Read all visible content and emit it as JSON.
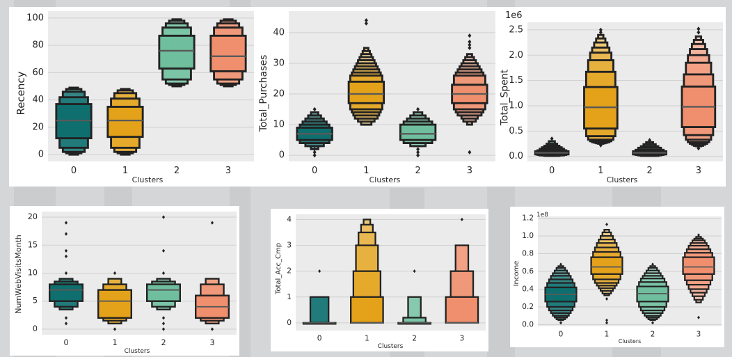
{
  "colors": {
    "cluster_palette": [
      "#0e6f6e",
      "#e3a21a",
      "#6fbf9e",
      "#ef8f6e"
    ],
    "plot_background": "#ebebeb",
    "grid": "#cfcfcf",
    "edge": "#222222"
  },
  "chart_data": [
    {
      "type": "boxen",
      "xlabel": "Clusters",
      "ylabel": "Recency",
      "offset_label": "",
      "categories": [
        "0",
        "1",
        "2",
        "3"
      ],
      "ylim": [
        -5,
        105
      ],
      "yticks": [
        0,
        20,
        40,
        60,
        80,
        100
      ],
      "ytick_labels": [
        "0",
        "20",
        "40",
        "60",
        "80",
        "100"
      ],
      "grid": true,
      "boxes": [
        {
          "levels": [
            [
              12,
              37
            ],
            [
              5,
              42
            ],
            [
              2,
              46
            ],
            [
              1,
              48
            ],
            [
              0,
              49
            ]
          ],
          "median": 25,
          "outliers": []
        },
        {
          "levels": [
            [
              13,
              35
            ],
            [
              5,
              41
            ],
            [
              2,
              45
            ],
            [
              1,
              47
            ],
            [
              0,
              48
            ]
          ],
          "median": 25,
          "outliers": []
        },
        {
          "levels": [
            [
              63,
              87
            ],
            [
              55,
              93
            ],
            [
              52,
              96
            ],
            [
              51,
              98
            ],
            [
              50,
              99
            ]
          ],
          "median": 76,
          "outliers": []
        },
        {
          "levels": [
            [
              61,
              87
            ],
            [
              55,
              93
            ],
            [
              52,
              96
            ],
            [
              51,
              98
            ],
            [
              50,
              99
            ]
          ],
          "median": 72,
          "outliers": []
        }
      ]
    },
    {
      "type": "boxen",
      "xlabel": "Clusters",
      "ylabel": "Total_Purchases",
      "offset_label": "",
      "categories": [
        "0",
        "1",
        "2",
        "3"
      ],
      "ylim": [
        -2,
        47
      ],
      "yticks": [
        0,
        10,
        20,
        30,
        40
      ],
      "ytick_labels": [
        "0",
        "10",
        "20",
        "30",
        "40"
      ],
      "grid": true,
      "boxes": [
        {
          "levels": [
            [
              5,
              9
            ],
            [
              4,
              10
            ],
            [
              4,
              11
            ],
            [
              3,
              12
            ],
            [
              3,
              13
            ],
            [
              2,
              14
            ]
          ],
          "median": 7,
          "outliers": [
            0,
            1,
            2,
            15
          ]
        },
        {
          "levels": [
            [
              17,
              24
            ],
            [
              15,
              26
            ],
            [
              14,
              27
            ],
            [
              13,
              28
            ],
            [
              12,
              29
            ],
            [
              12,
              30
            ],
            [
              11,
              31
            ],
            [
              11,
              32
            ],
            [
              10,
              33
            ],
            [
              10,
              34
            ],
            [
              10,
              35
            ]
          ],
          "median": 20,
          "outliers": [
            43,
            44
          ]
        },
        {
          "levels": [
            [
              5,
              10
            ],
            [
              4,
              11
            ],
            [
              4,
              12
            ],
            [
              3,
              13
            ],
            [
              3,
              14
            ]
          ],
          "median": 7,
          "outliers": [
            0,
            1,
            2,
            15
          ]
        },
        {
          "levels": [
            [
              17,
              23
            ],
            [
              15,
              26
            ],
            [
              14,
              27
            ],
            [
              13,
              28
            ],
            [
              13,
              29
            ],
            [
              12,
              30
            ],
            [
              11,
              31
            ],
            [
              11,
              32
            ],
            [
              10,
              33
            ]
          ],
          "median": 20,
          "outliers": [
            1,
            35,
            36,
            37,
            39
          ]
        }
      ]
    },
    {
      "type": "boxen",
      "xlabel": "Clusters",
      "ylabel": "Total_Spent",
      "offset_label": "1e6",
      "categories": [
        "0",
        "1",
        "2",
        "3"
      ],
      "ylim": [
        -0.1,
        2.65
      ],
      "yticks": [
        0,
        0.5,
        1,
        1.5,
        2,
        2.5
      ],
      "ytick_labels": [
        "0.0",
        "0.5",
        "1.0",
        "1.5",
        "2.0",
        "2.5"
      ],
      "grid": true,
      "boxes": [
        {
          "levels": [
            [
              0.04,
              0.1
            ],
            [
              0.03,
              0.12
            ],
            [
              0.02,
              0.15
            ],
            [
              0.02,
              0.18
            ],
            [
              0.01,
              0.21
            ],
            [
              0.01,
              0.25
            ],
            [
              0.01,
              0.3
            ]
          ],
          "median": 0.07,
          "outliers": [
            0.35
          ]
        },
        {
          "levels": [
            [
              0.55,
              1.37
            ],
            [
              0.4,
              1.67
            ],
            [
              0.33,
              1.9
            ],
            [
              0.3,
              2.05
            ],
            [
              0.28,
              2.15
            ],
            [
              0.27,
              2.25
            ],
            [
              0.26,
              2.33
            ],
            [
              0.25,
              2.4
            ]
          ],
          "median": 0.97,
          "outliers": [
            0.22,
            2.45,
            2.5
          ]
        },
        {
          "levels": [
            [
              0.04,
              0.1
            ],
            [
              0.03,
              0.13
            ],
            [
              0.02,
              0.17
            ],
            [
              0.01,
              0.2
            ],
            [
              0.01,
              0.24
            ],
            [
              0.01,
              0.28
            ]
          ],
          "median": 0.07,
          "outliers": [
            0.32
          ]
        },
        {
          "levels": [
            [
              0.58,
              1.38
            ],
            [
              0.42,
              1.62
            ],
            [
              0.33,
              1.85
            ],
            [
              0.28,
              2.0
            ],
            [
              0.25,
              2.12
            ],
            [
              0.23,
              2.22
            ],
            [
              0.21,
              2.3
            ],
            [
              0.2,
              2.37
            ]
          ],
          "median": 0.98,
          "outliers": [
            0.16,
            2.45,
            2.52
          ]
        }
      ]
    },
    {
      "type": "boxen",
      "xlabel": "Clusters",
      "ylabel": "NumWebVisitsMonth",
      "offset_label": "",
      "categories": [
        "0",
        "1",
        "2",
        "3"
      ],
      "ylim": [
        -1,
        21
      ],
      "yticks": [
        0,
        5,
        10,
        15,
        20
      ],
      "ytick_labels": [
        "0",
        "5",
        "10",
        "15",
        "20"
      ],
      "grid": true,
      "boxes": [
        {
          "levels": [
            [
              5,
              8
            ],
            [
              4,
              8.5
            ],
            [
              3.5,
              9
            ]
          ],
          "median": 7,
          "outliers": [
            1,
            2,
            10,
            13,
            14,
            17,
            19
          ]
        },
        {
          "levels": [
            [
              2,
              7
            ],
            [
              1.5,
              8
            ],
            [
              1,
              9
            ]
          ],
          "median": 5,
          "outliers": [
            0,
            10
          ]
        },
        {
          "levels": [
            [
              5,
              8
            ],
            [
              4,
              8.5
            ],
            [
              3.5,
              9
            ]
          ],
          "median": 7,
          "outliers": [
            0,
            1,
            2,
            10,
            14,
            20
          ]
        },
        {
          "levels": [
            [
              2,
              6
            ],
            [
              1.5,
              8
            ],
            [
              1,
              9
            ]
          ],
          "median": 4,
          "outliers": [
            0,
            19
          ]
        }
      ]
    },
    {
      "type": "boxen",
      "xlabel": "Clusters",
      "ylabel": "Total_Acc_Cmp",
      "offset_label": "",
      "categories": [
        "0",
        "1",
        "2",
        "3"
      ],
      "ylim": [
        -0.3,
        4.2
      ],
      "yticks": [
        0,
        1,
        2,
        3,
        4
      ],
      "ytick_labels": [
        "0",
        "1",
        "2",
        "3",
        "4"
      ],
      "grid": true,
      "boxes": [
        {
          "levels": [
            [
              0,
              0
            ],
            [
              0,
              1
            ]
          ],
          "median": 0,
          "outliers": [
            2
          ]
        },
        {
          "levels": [
            [
              0,
              1
            ],
            [
              0,
              2
            ],
            [
              0,
              3
            ],
            [
              0,
              3.5
            ],
            [
              0,
              3.8
            ],
            [
              0,
              4
            ]
          ],
          "median": 0,
          "outliers": []
        },
        {
          "levels": [
            [
              0,
              0
            ],
            [
              0,
              0.2
            ],
            [
              0,
              1
            ]
          ],
          "median": 0,
          "outliers": [
            2
          ]
        },
        {
          "levels": [
            [
              0,
              1
            ],
            [
              0,
              2
            ],
            [
              0,
              3
            ]
          ],
          "median": 0,
          "outliers": [
            4
          ]
        }
      ]
    },
    {
      "type": "boxen",
      "xlabel": "Clusters",
      "ylabel": "Income",
      "offset_label": "1e8",
      "categories": [
        "0",
        "1",
        "2",
        "3"
      ],
      "ylim": [
        -0.02,
        1.22
      ],
      "yticks": [
        0,
        0.2,
        0.4,
        0.6,
        0.8,
        1,
        1.2
      ],
      "ytick_labels": [
        "0.0",
        "0.2",
        "0.4",
        "0.6",
        "0.8",
        "1.0",
        "1.2"
      ],
      "grid": true,
      "boxes": [
        {
          "levels": [
            [
              0.26,
              0.42
            ],
            [
              0.2,
              0.47
            ],
            [
              0.16,
              0.51
            ],
            [
              0.13,
              0.55
            ],
            [
              0.1,
              0.58
            ],
            [
              0.08,
              0.61
            ],
            [
              0.06,
              0.64
            ],
            [
              0.05,
              0.66
            ]
          ],
          "median": 0.34,
          "outliers": [
            0.02,
            0.68
          ]
        },
        {
          "levels": [
            [
              0.57,
              0.76
            ],
            [
              0.51,
              0.82
            ],
            [
              0.47,
              0.87
            ],
            [
              0.44,
              0.92
            ],
            [
              0.41,
              0.96
            ],
            [
              0.38,
              1.0
            ],
            [
              0.35,
              1.04
            ],
            [
              0.33,
              1.07
            ]
          ],
          "median": 0.65,
          "outliers": [
            0.02,
            0.05,
            0.29,
            1.13
          ]
        },
        {
          "levels": [
            [
              0.26,
              0.43
            ],
            [
              0.2,
              0.48
            ],
            [
              0.16,
              0.52
            ],
            [
              0.13,
              0.55
            ],
            [
              0.1,
              0.58
            ],
            [
              0.08,
              0.61
            ],
            [
              0.06,
              0.64
            ],
            [
              0.05,
              0.66
            ]
          ],
          "median": 0.35,
          "outliers": [
            0.02,
            0.68
          ]
        },
        {
          "levels": [
            [
              0.57,
              0.76
            ],
            [
              0.5,
              0.81
            ],
            [
              0.45,
              0.85
            ],
            [
              0.4,
              0.89
            ],
            [
              0.36,
              0.92
            ],
            [
              0.32,
              0.95
            ],
            [
              0.28,
              0.97
            ],
            [
              0.25,
              0.99
            ]
          ],
          "median": 0.65,
          "outliers": [
            0.08,
            1.01
          ]
        }
      ]
    }
  ]
}
